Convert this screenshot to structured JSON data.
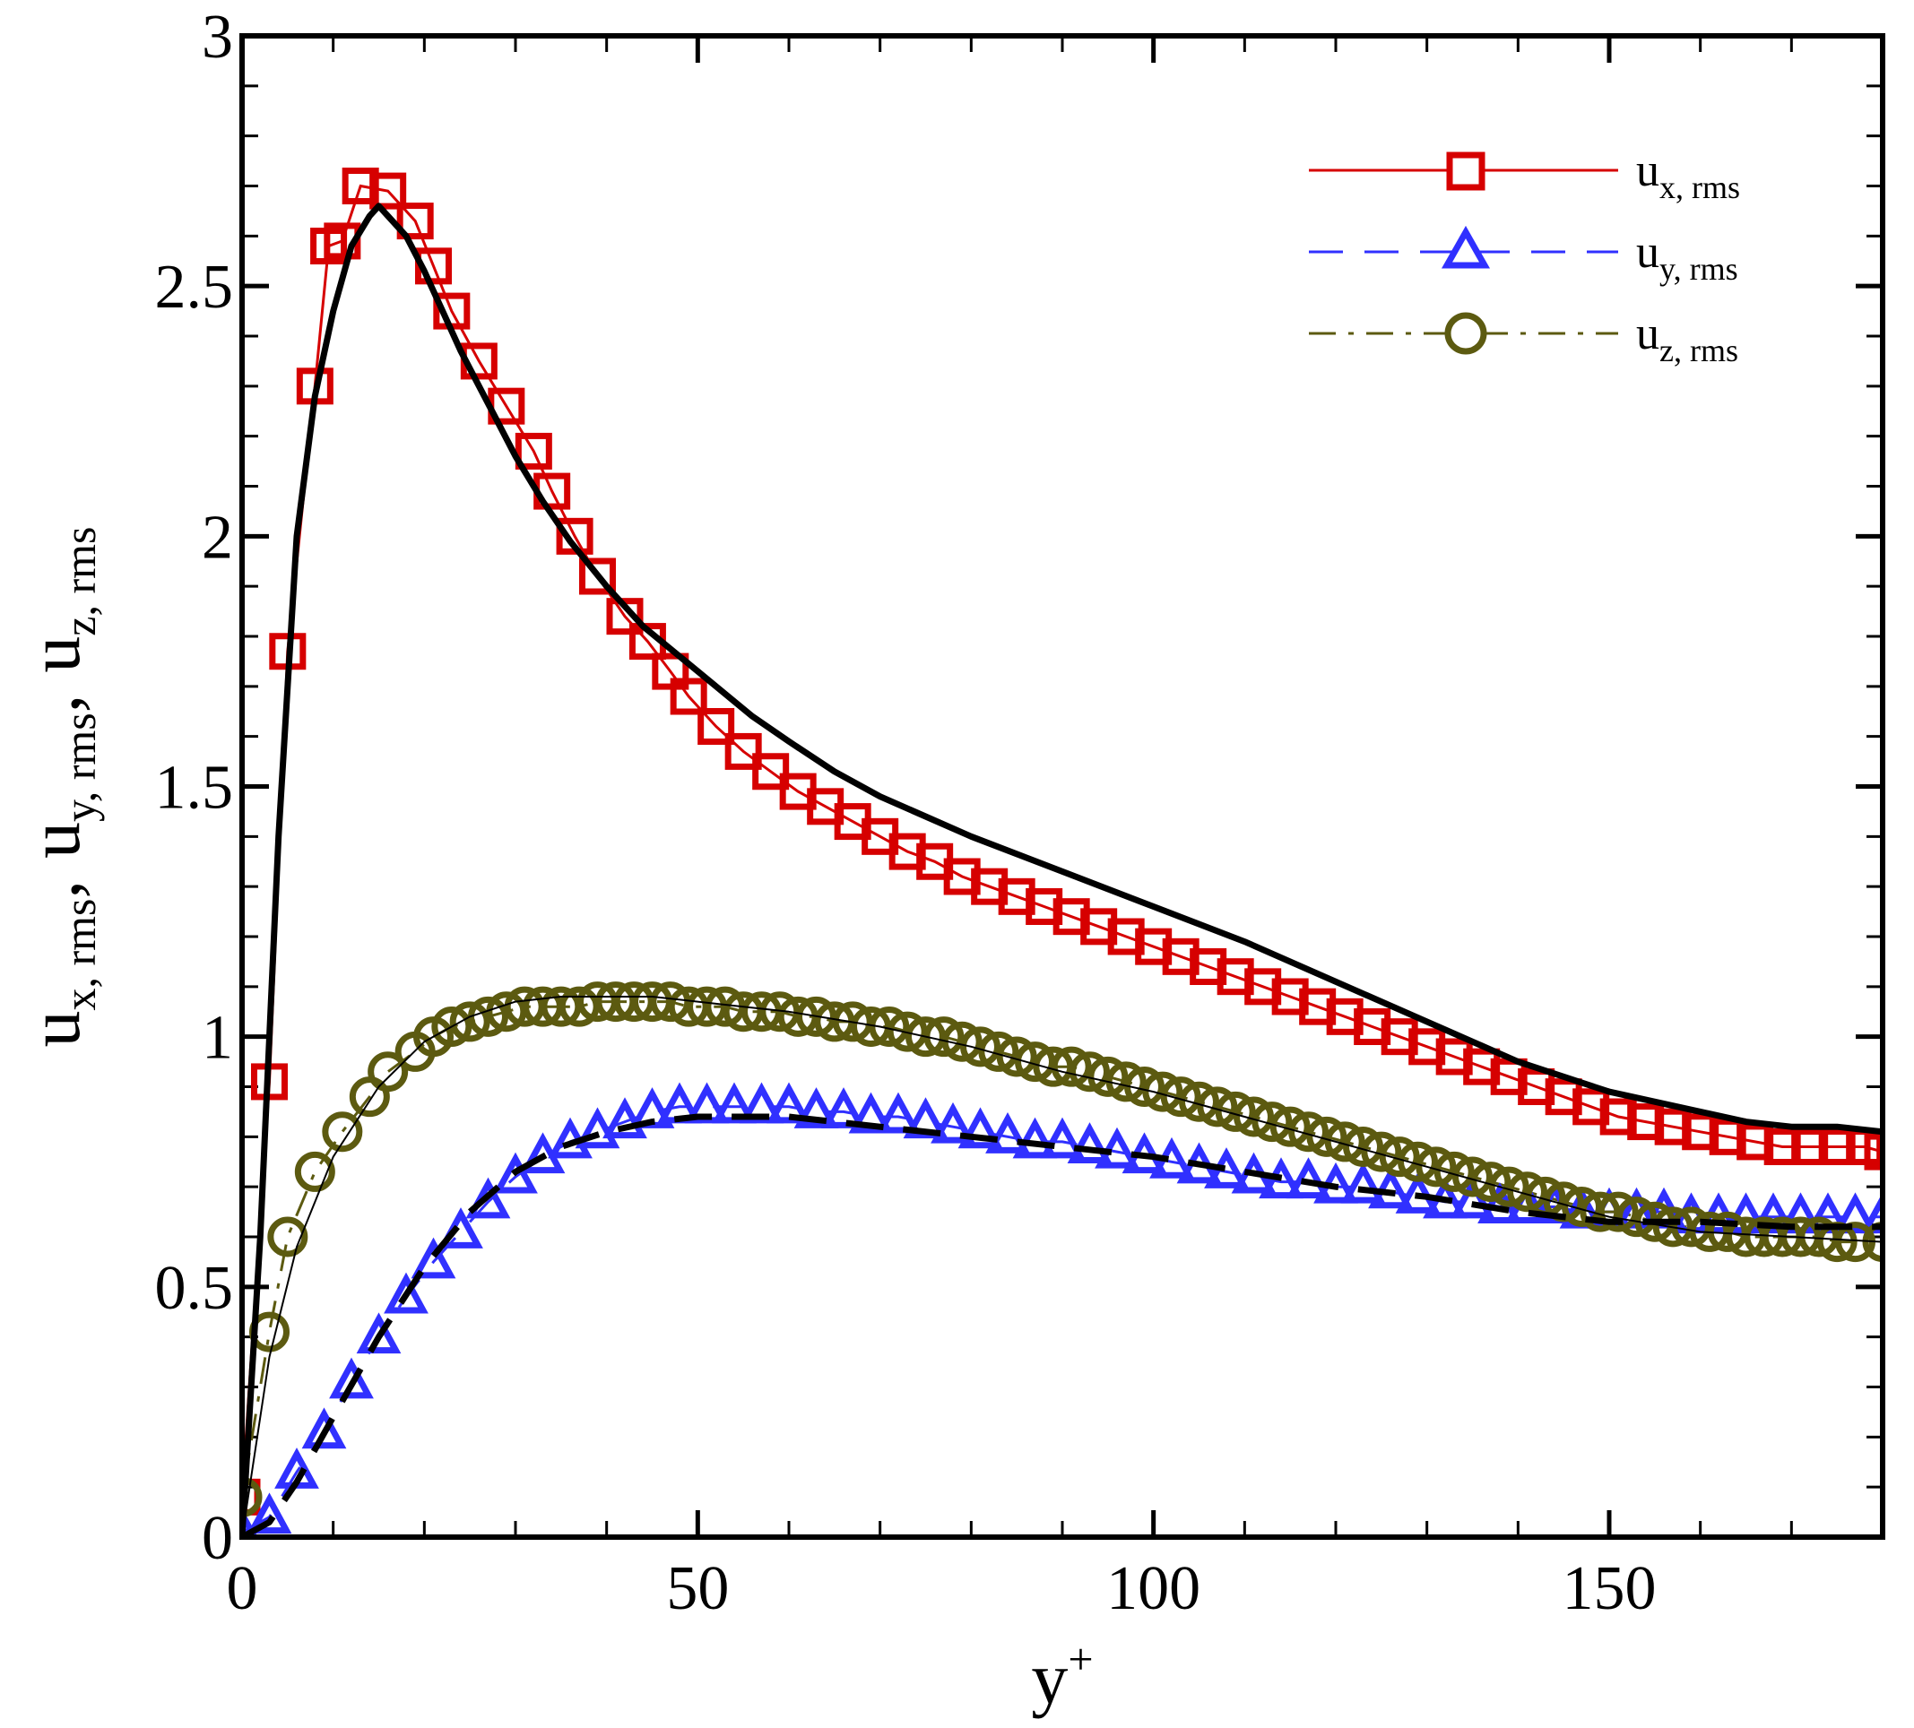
{
  "chart_data": {
    "type": "line",
    "title": "",
    "xlabel": {
      "base": "y",
      "sup": "+"
    },
    "ylabel": [
      {
        "base": "u",
        "sub": "x, rms"
      },
      {
        "base": "u",
        "sub": "y, rms"
      },
      {
        "base": "u",
        "sub": "z, rms"
      }
    ],
    "ylabel_separator": ",",
    "xlim": [
      0,
      180
    ],
    "ylim": [
      0,
      3
    ],
    "x_ticks": [
      0,
      50,
      100,
      150
    ],
    "x_tick_labels": [
      "0",
      "50",
      "100",
      "150"
    ],
    "y_ticks": [
      0,
      0.5,
      1,
      1.5,
      2,
      2.5,
      3
    ],
    "y_tick_labels": [
      "0",
      "0.5",
      "1",
      "1.5",
      "2",
      "2.5",
      "3"
    ],
    "grid": false,
    "legend_position": "top-right",
    "colors": {
      "ux": "#d60000",
      "uy": "#3030ff",
      "uz": "#5c5a10",
      "reference": "#000000",
      "frame": "#000000"
    },
    "series": [
      {
        "name": "u_x_rms",
        "legend_base": "u",
        "legend_sub": "x, rms",
        "marker": "square",
        "line_style": "solid",
        "color": "#d60000",
        "x": [
          0,
          3,
          5,
          8,
          9.5,
          11,
          13,
          16,
          19,
          21,
          23,
          26,
          29,
          32,
          34,
          36.5,
          39,
          42,
          44.5,
          47,
          49,
          52,
          55,
          58,
          61,
          64,
          67,
          70,
          73,
          76,
          79,
          82,
          85,
          88,
          91,
          94,
          97,
          100,
          103,
          106,
          109,
          112,
          115,
          118,
          121,
          124,
          127,
          130,
          133,
          136,
          139,
          142,
          145,
          148,
          151,
          154,
          157,
          160,
          163,
          166,
          169,
          172,
          175,
          178,
          180
        ],
        "values": [
          0.08,
          0.91,
          1.77,
          2.3,
          2.58,
          2.59,
          2.7,
          2.69,
          2.63,
          2.54,
          2.45,
          2.35,
          2.26,
          2.17,
          2.09,
          2.0,
          1.92,
          1.84,
          1.79,
          1.73,
          1.68,
          1.62,
          1.57,
          1.53,
          1.49,
          1.46,
          1.43,
          1.4,
          1.37,
          1.35,
          1.32,
          1.3,
          1.28,
          1.26,
          1.24,
          1.22,
          1.2,
          1.18,
          1.16,
          1.14,
          1.12,
          1.1,
          1.08,
          1.06,
          1.04,
          1.02,
          1.0,
          0.98,
          0.96,
          0.94,
          0.92,
          0.9,
          0.88,
          0.86,
          0.84,
          0.83,
          0.82,
          0.81,
          0.8,
          0.79,
          0.78,
          0.78,
          0.78,
          0.78,
          0.77
        ]
      },
      {
        "name": "u_y_rms",
        "legend_base": "u",
        "legend_sub": "y, rms",
        "marker": "triangle",
        "line_style": "dashed",
        "color": "#3030ff",
        "x": [
          0,
          3,
          6,
          9,
          12,
          15,
          18,
          21,
          24,
          27,
          30,
          33,
          36,
          39,
          42,
          45,
          48,
          51,
          54,
          57,
          60,
          63,
          66,
          69,
          72,
          75,
          78,
          81,
          84,
          87,
          90,
          93,
          96,
          99,
          102,
          105,
          108,
          111,
          114,
          117,
          120,
          123,
          126,
          129,
          132,
          135,
          138,
          141,
          144,
          147,
          150,
          153,
          156,
          159,
          162,
          165,
          168,
          171,
          174,
          177,
          180
        ],
        "values": [
          0.01,
          0.04,
          0.13,
          0.21,
          0.31,
          0.4,
          0.48,
          0.55,
          0.61,
          0.67,
          0.72,
          0.76,
          0.79,
          0.81,
          0.83,
          0.85,
          0.86,
          0.86,
          0.86,
          0.86,
          0.86,
          0.85,
          0.85,
          0.84,
          0.84,
          0.83,
          0.82,
          0.81,
          0.8,
          0.79,
          0.79,
          0.78,
          0.77,
          0.76,
          0.75,
          0.74,
          0.73,
          0.72,
          0.71,
          0.71,
          0.7,
          0.7,
          0.69,
          0.68,
          0.67,
          0.67,
          0.66,
          0.66,
          0.66,
          0.65,
          0.65,
          0.65,
          0.65,
          0.64,
          0.64,
          0.64,
          0.64,
          0.64,
          0.64,
          0.64,
          0.64
        ]
      },
      {
        "name": "u_z_rms",
        "legend_base": "u",
        "legend_sub": "z, rms",
        "marker": "circle",
        "line_style": "dash-dot",
        "color": "#5c5a10",
        "x": [
          0,
          3,
          5,
          8,
          11,
          14,
          16,
          19,
          21,
          23,
          25,
          27,
          29,
          31,
          33,
          35,
          37,
          39,
          41,
          43,
          45,
          47,
          49,
          51,
          53,
          55,
          57,
          59,
          61,
          63,
          65,
          67,
          69,
          71,
          73,
          75,
          77,
          79,
          81,
          83,
          85,
          87,
          89,
          91,
          93,
          95,
          97,
          99,
          101,
          103,
          105,
          107,
          109,
          111,
          113,
          115,
          117,
          119,
          121,
          123,
          125,
          127,
          129,
          131,
          133,
          135,
          137,
          139,
          141,
          143,
          145,
          147,
          149,
          151,
          153,
          155,
          157,
          159,
          161,
          163,
          165,
          167,
          169,
          171,
          173,
          175,
          177,
          180
        ],
        "values": [
          0.08,
          0.41,
          0.6,
          0.73,
          0.81,
          0.88,
          0.93,
          0.97,
          1.0,
          1.02,
          1.03,
          1.04,
          1.05,
          1.06,
          1.06,
          1.06,
          1.06,
          1.07,
          1.07,
          1.07,
          1.07,
          1.07,
          1.06,
          1.06,
          1.06,
          1.05,
          1.05,
          1.05,
          1.04,
          1.04,
          1.03,
          1.03,
          1.02,
          1.02,
          1.01,
          1.0,
          1.0,
          0.99,
          0.98,
          0.97,
          0.96,
          0.95,
          0.94,
          0.94,
          0.93,
          0.92,
          0.91,
          0.9,
          0.89,
          0.88,
          0.87,
          0.86,
          0.85,
          0.84,
          0.83,
          0.82,
          0.81,
          0.8,
          0.79,
          0.78,
          0.77,
          0.76,
          0.75,
          0.74,
          0.73,
          0.72,
          0.71,
          0.7,
          0.69,
          0.68,
          0.67,
          0.66,
          0.65,
          0.65,
          0.64,
          0.63,
          0.62,
          0.62,
          0.61,
          0.61,
          0.6,
          0.6,
          0.6,
          0.6,
          0.6,
          0.59,
          0.59,
          0.59
        ]
      }
    ],
    "reference_lines": [
      {
        "name": "u_x_rms_reference",
        "line_style": "solid-thick",
        "color": "#000000",
        "x": [
          0,
          2,
          4,
          6,
          8,
          10,
          12,
          14,
          15,
          16,
          18,
          20,
          22,
          24,
          26,
          28,
          30,
          33,
          36,
          40,
          44,
          48,
          52,
          56,
          60,
          65,
          70,
          75,
          80,
          90,
          100,
          110,
          120,
          130,
          140,
          150,
          160,
          165,
          170,
          175,
          180
        ],
        "values": [
          0.0,
          0.6,
          1.4,
          2.0,
          2.28,
          2.45,
          2.58,
          2.64,
          2.66,
          2.64,
          2.6,
          2.53,
          2.45,
          2.37,
          2.3,
          2.23,
          2.16,
          2.07,
          1.99,
          1.9,
          1.82,
          1.76,
          1.7,
          1.64,
          1.59,
          1.53,
          1.48,
          1.44,
          1.4,
          1.33,
          1.26,
          1.19,
          1.11,
          1.03,
          0.95,
          0.89,
          0.85,
          0.83,
          0.82,
          0.82,
          0.81
        ]
      },
      {
        "name": "u_y_rms_reference",
        "line_style": "dashed-thick",
        "color": "#000000",
        "x": [
          0,
          3,
          6,
          10,
          15,
          20,
          25,
          30,
          35,
          40,
          45,
          50,
          55,
          60,
          70,
          80,
          90,
          100,
          110,
          120,
          130,
          140,
          150,
          160,
          170,
          180
        ],
        "values": [
          0.0,
          0.03,
          0.11,
          0.24,
          0.4,
          0.54,
          0.65,
          0.73,
          0.78,
          0.81,
          0.83,
          0.84,
          0.84,
          0.84,
          0.82,
          0.8,
          0.78,
          0.76,
          0.73,
          0.7,
          0.68,
          0.65,
          0.63,
          0.63,
          0.62,
          0.62
        ]
      },
      {
        "name": "u_z_rms_reference",
        "line_style": "solid-thin",
        "color": "#000000",
        "x": [
          0,
          3,
          6,
          10,
          15,
          20,
          25,
          30,
          35,
          40,
          45,
          50,
          55,
          60,
          70,
          80,
          90,
          100,
          110,
          120,
          130,
          140,
          150,
          160,
          170,
          180
        ],
        "values": [
          0.0,
          0.36,
          0.58,
          0.76,
          0.9,
          0.99,
          1.04,
          1.07,
          1.08,
          1.08,
          1.08,
          1.07,
          1.06,
          1.05,
          1.02,
          0.98,
          0.93,
          0.89,
          0.84,
          0.79,
          0.74,
          0.69,
          0.64,
          0.61,
          0.6,
          0.59
        ]
      }
    ]
  }
}
